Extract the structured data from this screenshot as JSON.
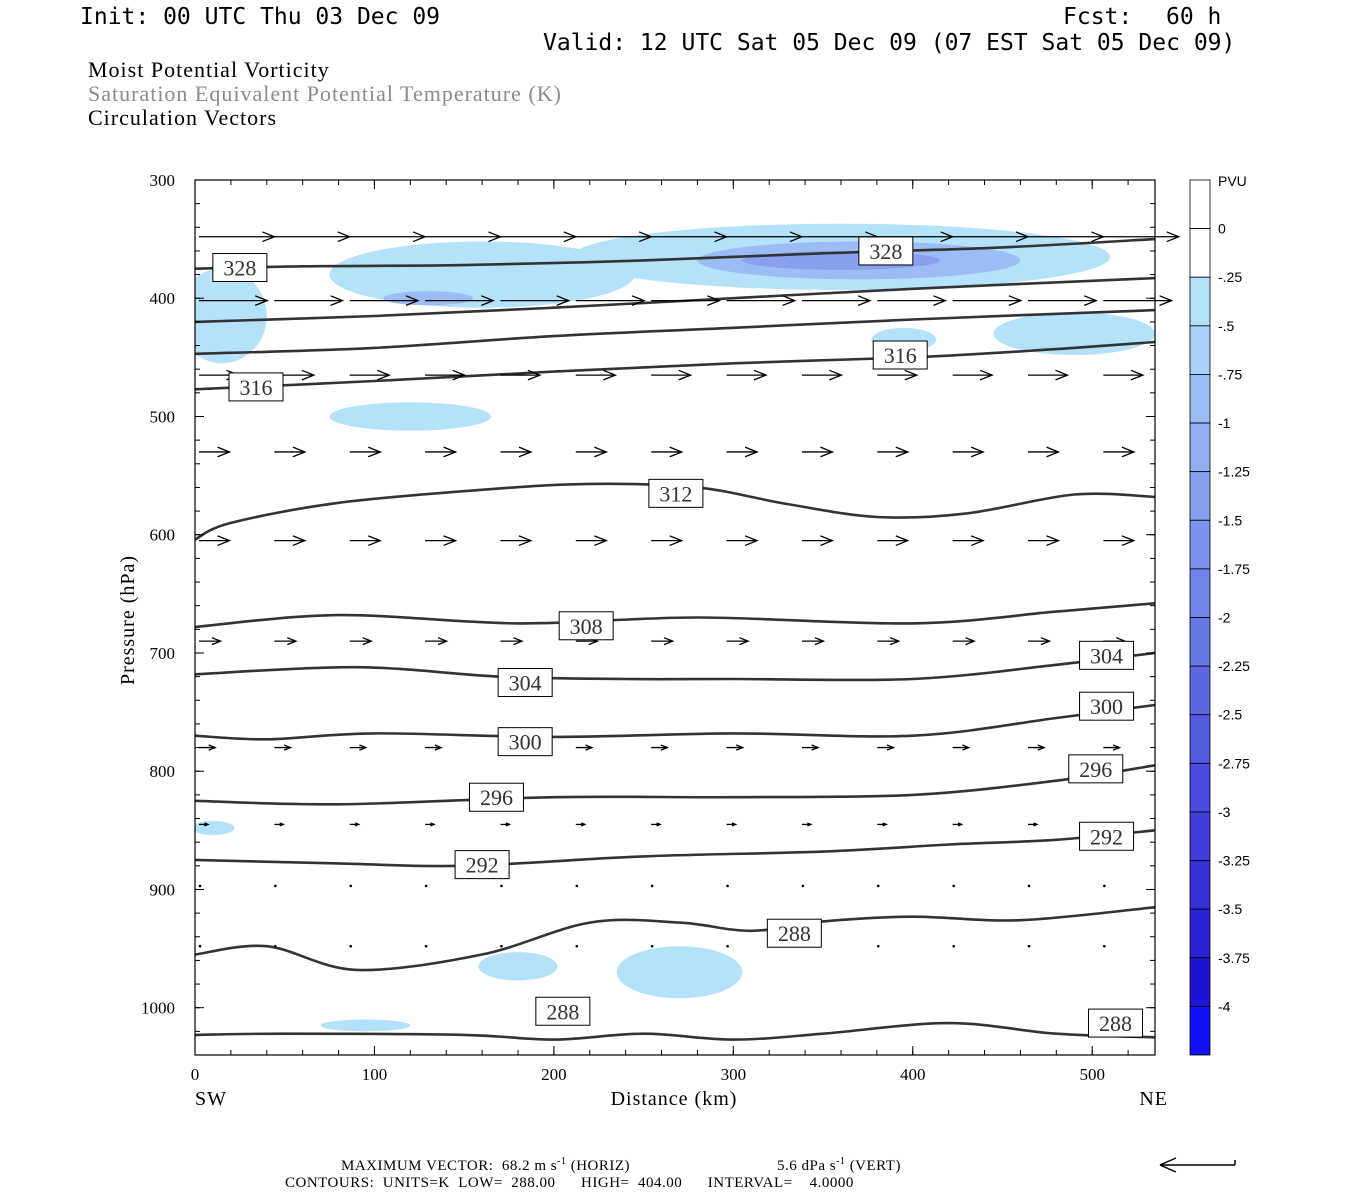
{
  "header": {
    "init": "Init: 00 UTC Thu 03 Dec 09",
    "fcst_label": "Fcst:",
    "fcst_value": "60 h",
    "valid": "Valid: 12 UTC Sat 05 Dec 09 (07 EST Sat 05 Dec 09)"
  },
  "titles": {
    "line1": "Moist Potential Vorticity",
    "line2": "Saturation Equivalent Potential Temperature (K)",
    "line3": "Circulation Vectors"
  },
  "colors": {
    "title2": "#8a8a8a",
    "contour": "#333333",
    "shade_light": "#b4e2fa",
    "shade_mid": "#9bbcf4",
    "shade_dark": "#8aa0ee"
  },
  "footer": {
    "max_vector": "MAXIMUM VECTOR:  68.2 m s",
    "sup1": "-1",
    "horiz": " (HORIZ)",
    "vert_val": "5.6 dPa s",
    "sup2": "-1",
    "vert": " (VERT)",
    "contours": "CONTOURS:  UNITS=K  LOW=  288.00      HIGH=  404.00      INTERVAL=    4.0000"
  },
  "chart_data": {
    "type": "cross-section",
    "xlabel": "Distance (km)",
    "ylabel": "Pressure (hPa)",
    "x_left_label": "SW",
    "x_right_label": "NE",
    "xlim": [
      0,
      535
    ],
    "ylim": [
      300,
      1040
    ],
    "x_ticks": [
      0,
      100,
      200,
      300,
      400,
      500
    ],
    "y_ticks": [
      300,
      400,
      500,
      600,
      700,
      800,
      900,
      1000
    ],
    "grid": false,
    "contour_var": "Saturation Equivalent Potential Temperature (K)",
    "contours": [
      {
        "level": 328,
        "points": [
          [
            0,
            375
          ],
          [
            60,
            373
          ],
          [
            150,
            372
          ],
          [
            250,
            368
          ],
          [
            350,
            362
          ],
          [
            450,
            357
          ],
          [
            535,
            350
          ]
        ]
      },
      {
        "level": 324,
        "points": [
          [
            0,
            420
          ],
          [
            100,
            415
          ],
          [
            200,
            408
          ],
          [
            300,
            400
          ],
          [
            400,
            392
          ],
          [
            535,
            383
          ]
        ]
      },
      {
        "level": 320,
        "points": [
          [
            0,
            447
          ],
          [
            100,
            442
          ],
          [
            200,
            432
          ],
          [
            300,
            425
          ],
          [
            400,
            418
          ],
          [
            535,
            410
          ]
        ]
      },
      {
        "level": 316,
        "points": [
          [
            0,
            477
          ],
          [
            100,
            470
          ],
          [
            200,
            462
          ],
          [
            300,
            455
          ],
          [
            400,
            450
          ],
          [
            480,
            443
          ],
          [
            535,
            437
          ]
        ]
      },
      {
        "level": 312,
        "points": [
          [
            0,
            604
          ],
          [
            20,
            590
          ],
          [
            80,
            573
          ],
          [
            160,
            562
          ],
          [
            220,
            557
          ],
          [
            280,
            560
          ],
          [
            330,
            574
          ],
          [
            380,
            585
          ],
          [
            430,
            582
          ],
          [
            490,
            566
          ],
          [
            535,
            568
          ]
        ]
      },
      {
        "level": 308,
        "points": [
          [
            0,
            678
          ],
          [
            80,
            668
          ],
          [
            180,
            675
          ],
          [
            280,
            670
          ],
          [
            400,
            675
          ],
          [
            480,
            665
          ],
          [
            535,
            658
          ]
        ]
      },
      {
        "level": 304,
        "points": [
          [
            0,
            718
          ],
          [
            90,
            712
          ],
          [
            170,
            720
          ],
          [
            240,
            722
          ],
          [
            300,
            722
          ],
          [
            400,
            722
          ],
          [
            480,
            710
          ],
          [
            535,
            700
          ]
        ]
      },
      {
        "level": 300,
        "points": [
          [
            0,
            770
          ],
          [
            40,
            773
          ],
          [
            100,
            768
          ],
          [
            200,
            771
          ],
          [
            300,
            768
          ],
          [
            400,
            770
          ],
          [
            480,
            755
          ],
          [
            535,
            744
          ]
        ]
      },
      {
        "level": 296,
        "points": [
          [
            0,
            825
          ],
          [
            80,
            828
          ],
          [
            200,
            822
          ],
          [
            300,
            822
          ],
          [
            400,
            820
          ],
          [
            480,
            808
          ],
          [
            535,
            795
          ]
        ]
      },
      {
        "level": 292,
        "points": [
          [
            0,
            875
          ],
          [
            80,
            878
          ],
          [
            150,
            880
          ],
          [
            250,
            872
          ],
          [
            350,
            868
          ],
          [
            420,
            862
          ],
          [
            480,
            858
          ],
          [
            535,
            850
          ]
        ]
      },
      {
        "level": 288,
        "points": [
          [
            0,
            955
          ],
          [
            40,
            948
          ],
          [
            90,
            968
          ],
          [
            160,
            955
          ],
          [
            220,
            928
          ],
          [
            270,
            928
          ],
          [
            310,
            935
          ],
          [
            350,
            927
          ],
          [
            400,
            923
          ],
          [
            460,
            926
          ],
          [
            535,
            915
          ]
        ]
      },
      {
        "level": 288,
        "points": [
          [
            0,
            1023
          ],
          [
            50,
            1022
          ],
          [
            150,
            1023
          ],
          [
            200,
            1027
          ],
          [
            250,
            1022
          ],
          [
            300,
            1027
          ],
          [
            350,
            1022
          ],
          [
            420,
            1013
          ],
          [
            480,
            1022
          ],
          [
            535,
            1025
          ]
        ]
      }
    ],
    "contour_labels": [
      {
        "text": "328",
        "x": 25,
        "p": 374
      },
      {
        "text": "328",
        "x": 385,
        "p": 360
      },
      {
        "text": "316",
        "x": 34,
        "p": 475
      },
      {
        "text": "316",
        "x": 393,
        "p": 448
      },
      {
        "text": "312",
        "x": 268,
        "p": 565
      },
      {
        "text": "308",
        "x": 218,
        "p": 677
      },
      {
        "text": "304",
        "x": 184,
        "p": 725
      },
      {
        "text": "304",
        "x": 508,
        "p": 702
      },
      {
        "text": "300",
        "x": 184,
        "p": 775
      },
      {
        "text": "300",
        "x": 508,
        "p": 745
      },
      {
        "text": "296",
        "x": 168,
        "p": 822
      },
      {
        "text": "296",
        "x": 502,
        "p": 798
      },
      {
        "text": "292",
        "x": 160,
        "p": 879
      },
      {
        "text": "292",
        "x": 508,
        "p": 855
      },
      {
        "text": "288",
        "x": 334,
        "p": 937
      },
      {
        "text": "288",
        "x": 205,
        "p": 1003
      },
      {
        "text": "288",
        "x": 513,
        "p": 1013
      }
    ],
    "shading_var": "Moist Potential Vorticity (PVU)",
    "shading_regions": [
      {
        "level": -0.25,
        "center": [
          160,
          380
        ],
        "radii": [
          85,
          28
        ]
      },
      {
        "level": -0.25,
        "center": [
          360,
          365
        ],
        "radii": [
          150,
          28
        ]
      },
      {
        "level": -0.25,
        "center": [
          120,
          500
        ],
        "radii": [
          45,
          12
        ]
      },
      {
        "level": -0.25,
        "center": [
          15,
          415
        ],
        "radii": [
          25,
          40
        ]
      },
      {
        "level": -0.25,
        "center": [
          490,
          430
        ],
        "radii": [
          45,
          18
        ]
      },
      {
        "level": -0.25,
        "center": [
          395,
          435
        ],
        "radii": [
          18,
          10
        ]
      },
      {
        "level": -0.25,
        "center": [
          180,
          965
        ],
        "radii": [
          22,
          12
        ]
      },
      {
        "level": -0.25,
        "center": [
          270,
          970
        ],
        "radii": [
          35,
          22
        ]
      },
      {
        "level": -0.25,
        "center": [
          95,
          1015
        ],
        "radii": [
          25,
          5
        ]
      },
      {
        "level": -0.25,
        "center": [
          10,
          848
        ],
        "radii": [
          12,
          6
        ]
      },
      {
        "level": -0.5,
        "center": [
          370,
          368
        ],
        "radii": [
          90,
          16
        ]
      },
      {
        "level": -0.5,
        "center": [
          130,
          400
        ],
        "radii": [
          25,
          6
        ]
      },
      {
        "level": -0.75,
        "center": [
          360,
          368
        ],
        "radii": [
          55,
          8
        ]
      }
    ],
    "vector_var": "Circulation Vectors",
    "vector_rows": [
      {
        "p": 348,
        "u": 42
      },
      {
        "p": 402,
        "u": 38
      },
      {
        "p": 465,
        "u": 22
      },
      {
        "p": 530,
        "u": 17
      },
      {
        "p": 605,
        "u": 17
      },
      {
        "p": 690,
        "u": 12
      },
      {
        "p": 780,
        "u": 9
      },
      {
        "p": 845,
        "u": 5
      },
      {
        "p": 897,
        "u": 2
      },
      {
        "p": 948,
        "u": 1
      }
    ],
    "vector_columns": [
      0,
      42,
      84,
      126,
      168,
      210,
      252,
      294,
      336,
      378,
      420,
      462,
      504
    ],
    "colorbar": {
      "title": "PVU",
      "labels": [
        "0",
        "-.25",
        "-.5",
        "-.75",
        "-1",
        "-1.25",
        "-1.5",
        "-1.75",
        "-2",
        "-2.25",
        "-2.5",
        "-2.75",
        "-3",
        "-3.25",
        "-3.5",
        "-3.75",
        "-4"
      ],
      "colors": [
        "#ffffff",
        "#ffffff",
        "#b4e2fa",
        "#a8d0f8",
        "#9bbcf4",
        "#91aef1",
        "#87a0ee",
        "#7c92ec",
        "#7284e9",
        "#6876e6",
        "#5e68e3",
        "#535ae0",
        "#494cde",
        "#3f3edb",
        "#3430d8",
        "#2a22d5",
        "#1f14d2",
        "#1410f8"
      ]
    }
  }
}
